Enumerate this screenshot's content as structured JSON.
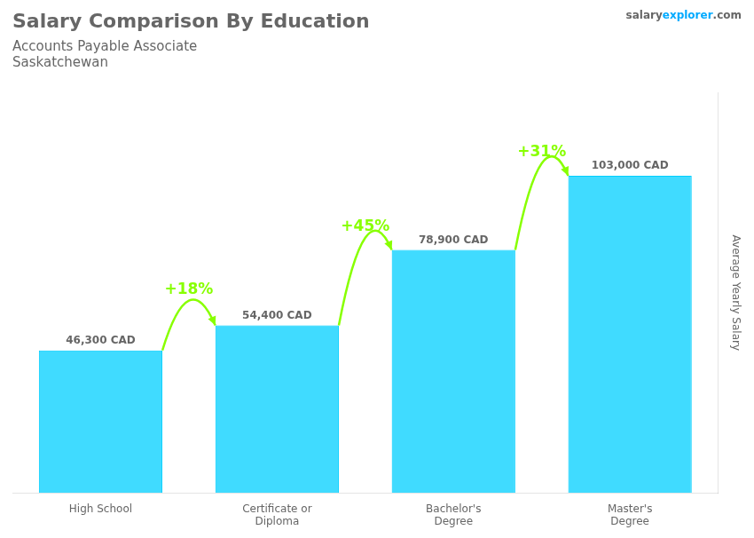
{
  "chart_data": {
    "type": "bar",
    "title": "Salary Comparison By Education",
    "subtitle": "Accounts Payable Associate",
    "location": "Saskatchewan",
    "source": [
      {
        "text": "salary"
      },
      {
        "text": "explorer",
        "color": "#00AAFF"
      },
      {
        "text": ".com"
      }
    ],
    "ylabel": "Average Yearly Salary",
    "categories": [
      "High School",
      "Certificate or\nDiploma",
      "Bachelor's\nDegree",
      "Master's\nDegree"
    ],
    "values": [
      46300,
      54400,
      78900,
      103000
    ],
    "value_labels": [
      "46,300 CAD",
      "54,400 CAD",
      "78,900 CAD",
      "103,000 CAD"
    ],
    "data_labels": true,
    "color": "#00CFFF",
    "ylim": [
      0,
      130000
    ],
    "grid": false,
    "tick_labels": "x",
    "annotations": [
      {
        "text": "+18%",
        "from": "High School",
        "to": "Certificate or\nDiploma",
        "color": "#88FF00"
      },
      {
        "text": "+45%",
        "from": "Certificate or\nDiploma",
        "to": "Bachelor's\nDegree",
        "color": "#88FF00"
      },
      {
        "text": "+31%",
        "from": "Bachelor's\nDegree",
        "to": "Master's\nDegree",
        "color": "#88FF00"
      }
    ]
  }
}
